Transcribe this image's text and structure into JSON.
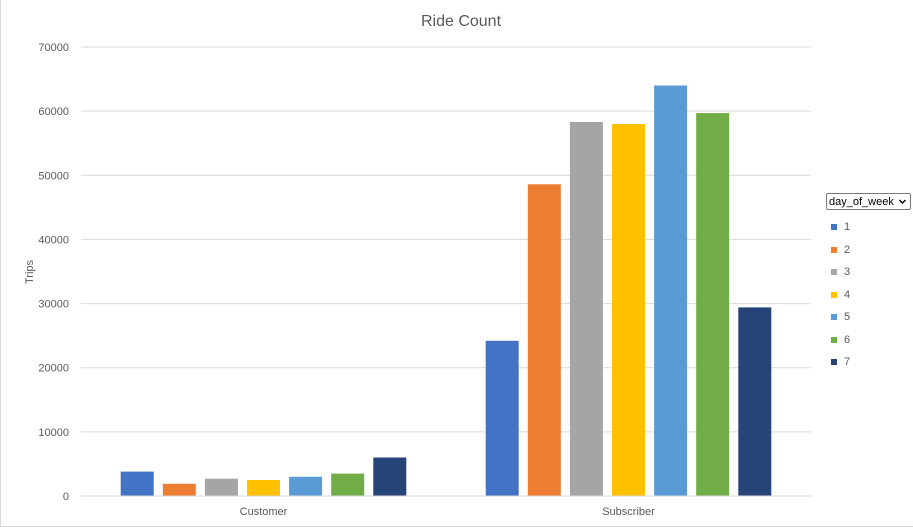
{
  "chart_data": {
    "type": "bar",
    "title": "Ride Count",
    "ylabel": "Trips",
    "xlabel": "",
    "categories": [
      "Customer",
      "Subscriber"
    ],
    "ylim": [
      0,
      70000
    ],
    "yticks": [
      0,
      10000,
      20000,
      30000,
      40000,
      50000,
      60000,
      70000
    ],
    "grid": true,
    "legend_title": "day_of_week",
    "legend_position": "right",
    "series": [
      {
        "name": "1",
        "color": "#4472C4",
        "values": [
          3800,
          24200
        ]
      },
      {
        "name": "2",
        "color": "#ED7D31",
        "values": [
          1900,
          48600
        ]
      },
      {
        "name": "3",
        "color": "#A5A5A5",
        "values": [
          2700,
          58300
        ]
      },
      {
        "name": "4",
        "color": "#FFC000",
        "values": [
          2500,
          58000
        ]
      },
      {
        "name": "5",
        "color": "#5B9BD5",
        "values": [
          3000,
          64000
        ]
      },
      {
        "name": "6",
        "color": "#70AD47",
        "values": [
          3500,
          59700
        ]
      },
      {
        "name": "7",
        "color": "#264478",
        "values": [
          6000,
          29400
        ]
      }
    ]
  },
  "colors": {
    "gridline": "#d9d9d9",
    "axis": "#d9d9d9",
    "text": "#595959"
  },
  "icons": {
    "legend_filter": "chevron-down-icon"
  }
}
